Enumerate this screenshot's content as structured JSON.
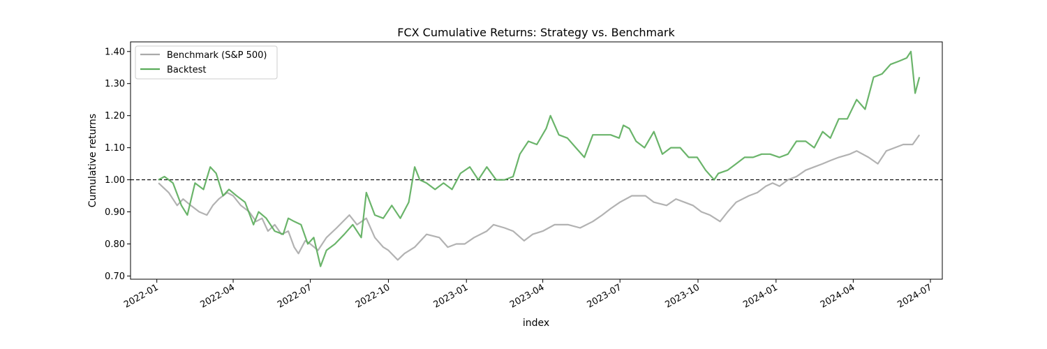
{
  "chart_data": {
    "type": "line",
    "title": "FCX Cumulative Returns: Strategy vs. Benchmark",
    "xlabel": "index",
    "ylabel": "Cumulative returns",
    "xlim": [
      "2021-12-01",
      "2024-07-15"
    ],
    "ylim": [
      0.69,
      1.43
    ],
    "y_ticks": [
      0.7,
      0.8,
      0.9,
      1.0,
      1.1,
      1.2,
      1.3,
      1.4
    ],
    "y_tick_labels": [
      "0.70",
      "0.80",
      "0.90",
      "1.00",
      "1.10",
      "1.20",
      "1.30",
      "1.40"
    ],
    "x_ticks": [
      "2022-01-01",
      "2022-04-01",
      "2022-07-01",
      "2022-10-01",
      "2023-01-01",
      "2023-04-01",
      "2023-07-01",
      "2023-10-01",
      "2024-01-01",
      "2024-04-01",
      "2024-07-01"
    ],
    "x_tick_labels": [
      "2022-01",
      "2022-04",
      "2022-07",
      "2022-10",
      "2023-01",
      "2023-04",
      "2023-07",
      "2023-10",
      "2024-01",
      "2024-04",
      "2024-07"
    ],
    "reference_line": {
      "y": 1.0,
      "style": "dashed",
      "color": "#000000"
    },
    "grid": false,
    "legend_position": "top-left",
    "series": [
      {
        "name": "Benchmark (S&P 500)",
        "color": "#aaaaaa",
        "x": [
          "2022-01-03",
          "2022-01-15",
          "2022-01-25",
          "2022-02-01",
          "2022-02-10",
          "2022-02-20",
          "2022-03-01",
          "2022-03-08",
          "2022-03-15",
          "2022-03-25",
          "2022-04-01",
          "2022-04-10",
          "2022-04-20",
          "2022-04-28",
          "2022-05-05",
          "2022-05-12",
          "2022-05-20",
          "2022-05-28",
          "2022-06-05",
          "2022-06-12",
          "2022-06-17",
          "2022-06-25",
          "2022-07-01",
          "2022-07-10",
          "2022-07-20",
          "2022-08-01",
          "2022-08-16",
          "2022-08-25",
          "2022-09-05",
          "2022-09-15",
          "2022-09-25",
          "2022-10-01",
          "2022-10-12",
          "2022-10-20",
          "2022-11-01",
          "2022-11-15",
          "2022-11-30",
          "2022-12-10",
          "2022-12-20",
          "2022-12-30",
          "2023-01-10",
          "2023-01-25",
          "2023-02-02",
          "2023-02-15",
          "2023-02-25",
          "2023-03-10",
          "2023-03-20",
          "2023-04-01",
          "2023-04-15",
          "2023-05-01",
          "2023-05-15",
          "2023-05-30",
          "2023-06-10",
          "2023-06-20",
          "2023-07-01",
          "2023-07-15",
          "2023-07-31",
          "2023-08-10",
          "2023-08-25",
          "2023-09-05",
          "2023-09-15",
          "2023-09-25",
          "2023-10-05",
          "2023-10-15",
          "2023-10-27",
          "2023-11-05",
          "2023-11-15",
          "2023-11-30",
          "2023-12-10",
          "2023-12-20",
          "2023-12-28",
          "2024-01-05",
          "2024-01-15",
          "2024-01-25",
          "2024-02-05",
          "2024-02-15",
          "2024-02-25",
          "2024-03-05",
          "2024-03-15",
          "2024-03-28",
          "2024-04-05",
          "2024-04-19",
          "2024-04-30",
          "2024-05-10",
          "2024-05-20",
          "2024-05-30",
          "2024-06-10",
          "2024-06-18"
        ],
        "values": [
          0.99,
          0.96,
          0.92,
          0.94,
          0.92,
          0.9,
          0.89,
          0.92,
          0.94,
          0.96,
          0.95,
          0.92,
          0.9,
          0.87,
          0.88,
          0.84,
          0.86,
          0.83,
          0.84,
          0.79,
          0.77,
          0.81,
          0.8,
          0.78,
          0.82,
          0.85,
          0.89,
          0.86,
          0.88,
          0.82,
          0.79,
          0.78,
          0.75,
          0.77,
          0.79,
          0.83,
          0.82,
          0.79,
          0.8,
          0.8,
          0.82,
          0.84,
          0.86,
          0.85,
          0.84,
          0.81,
          0.83,
          0.84,
          0.86,
          0.86,
          0.85,
          0.87,
          0.89,
          0.91,
          0.93,
          0.95,
          0.95,
          0.93,
          0.92,
          0.94,
          0.93,
          0.92,
          0.9,
          0.89,
          0.87,
          0.9,
          0.93,
          0.95,
          0.96,
          0.98,
          0.99,
          0.98,
          1.0,
          1.01,
          1.03,
          1.04,
          1.05,
          1.06,
          1.07,
          1.08,
          1.09,
          1.07,
          1.05,
          1.09,
          1.1,
          1.11,
          1.11,
          1.14
        ]
      },
      {
        "name": "Backtest",
        "color": "#5aac5a",
        "x": [
          "2022-01-03",
          "2022-01-10",
          "2022-01-20",
          "2022-01-30",
          "2022-02-06",
          "2022-02-15",
          "2022-02-25",
          "2022-03-05",
          "2022-03-12",
          "2022-03-20",
          "2022-03-27",
          "2022-04-05",
          "2022-04-15",
          "2022-04-25",
          "2022-05-01",
          "2022-05-10",
          "2022-05-20",
          "2022-05-30",
          "2022-06-05",
          "2022-06-12",
          "2022-06-20",
          "2022-06-28",
          "2022-07-05",
          "2022-07-13",
          "2022-07-20",
          "2022-07-30",
          "2022-08-10",
          "2022-08-20",
          "2022-08-30",
          "2022-09-05",
          "2022-09-15",
          "2022-09-25",
          "2022-10-05",
          "2022-10-15",
          "2022-10-25",
          "2022-11-01",
          "2022-11-07",
          "2022-11-15",
          "2022-11-25",
          "2022-12-05",
          "2022-12-15",
          "2022-12-25",
          "2023-01-05",
          "2023-01-15",
          "2023-01-25",
          "2023-02-05",
          "2023-02-15",
          "2023-02-25",
          "2023-03-05",
          "2023-03-15",
          "2023-03-25",
          "2023-04-05",
          "2023-04-10",
          "2023-04-20",
          "2023-04-30",
          "2023-05-10",
          "2023-05-20",
          "2023-05-30",
          "2023-06-10",
          "2023-06-20",
          "2023-06-30",
          "2023-07-05",
          "2023-07-12",
          "2023-07-20",
          "2023-07-30",
          "2023-08-10",
          "2023-08-20",
          "2023-08-30",
          "2023-09-10",
          "2023-09-20",
          "2023-09-30",
          "2023-10-10",
          "2023-10-20",
          "2023-10-25",
          "2023-11-05",
          "2023-11-15",
          "2023-11-25",
          "2023-12-05",
          "2023-12-15",
          "2023-12-25",
          "2024-01-05",
          "2024-01-15",
          "2024-01-25",
          "2024-02-05",
          "2024-02-15",
          "2024-02-25",
          "2024-03-05",
          "2024-03-15",
          "2024-03-25",
          "2024-04-05",
          "2024-04-15",
          "2024-04-25",
          "2024-05-05",
          "2024-05-15",
          "2024-05-25",
          "2024-06-03",
          "2024-06-08",
          "2024-06-13",
          "2024-06-18"
        ],
        "values": [
          1.0,
          1.01,
          0.99,
          0.92,
          0.89,
          0.99,
          0.97,
          1.04,
          1.02,
          0.95,
          0.97,
          0.95,
          0.93,
          0.86,
          0.9,
          0.88,
          0.84,
          0.83,
          0.88,
          0.87,
          0.86,
          0.8,
          0.82,
          0.73,
          0.78,
          0.8,
          0.83,
          0.86,
          0.82,
          0.96,
          0.89,
          0.88,
          0.92,
          0.88,
          0.93,
          1.04,
          1.0,
          0.99,
          0.97,
          0.99,
          0.97,
          1.02,
          1.04,
          1.0,
          1.04,
          1.0,
          1.0,
          1.01,
          1.08,
          1.12,
          1.11,
          1.16,
          1.2,
          1.14,
          1.13,
          1.1,
          1.07,
          1.14,
          1.14,
          1.14,
          1.13,
          1.17,
          1.16,
          1.12,
          1.1,
          1.15,
          1.08,
          1.1,
          1.1,
          1.07,
          1.07,
          1.03,
          1.0,
          1.02,
          1.03,
          1.05,
          1.07,
          1.07,
          1.08,
          1.08,
          1.07,
          1.08,
          1.12,
          1.12,
          1.1,
          1.15,
          1.13,
          1.19,
          1.19,
          1.25,
          1.22,
          1.32,
          1.33,
          1.36,
          1.37,
          1.38,
          1.4,
          1.27,
          1.32
        ]
      }
    ]
  }
}
